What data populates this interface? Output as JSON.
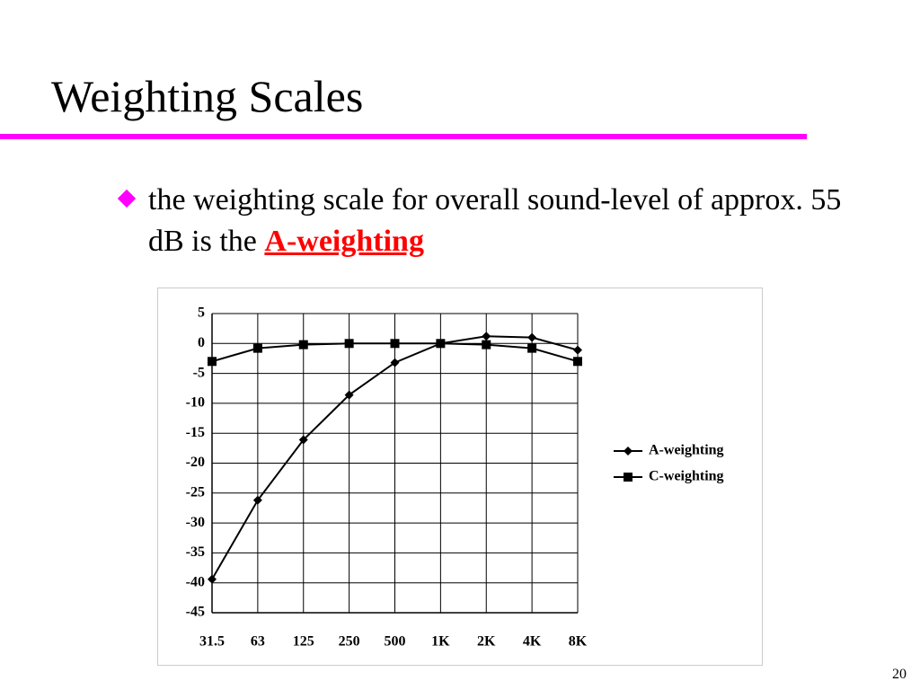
{
  "slide": {
    "title": "Weighting Scales",
    "bullet": {
      "text": "the weighting scale for overall sound-level of approx. 55 dB is the",
      "emphasis": "A-weighting"
    },
    "page_number": "20"
  },
  "chart_data": {
    "type": "line",
    "categories": [
      "31.5",
      "63",
      "125",
      "250",
      "500",
      "1K",
      "2K",
      "4K",
      "8K"
    ],
    "series": [
      {
        "name": "A-weighting",
        "color": "#000000",
        "marker": "diamond",
        "values": [
          -39.4,
          -26.2,
          -16.1,
          -8.6,
          -3.2,
          0,
          1.2,
          1.0,
          -1.1
        ]
      },
      {
        "name": "C-weighting",
        "color": "#000000",
        "marker": "square",
        "values": [
          -3.0,
          -0.8,
          -0.2,
          0,
          0,
          0,
          -0.2,
          -0.8,
          -3.0
        ]
      }
    ],
    "ylim": [
      -45,
      5
    ],
    "yticks": [
      5,
      0,
      -5,
      -10,
      -15,
      -20,
      -25,
      -30,
      -35,
      -40,
      -45
    ],
    "grid": true,
    "legend": "right"
  }
}
